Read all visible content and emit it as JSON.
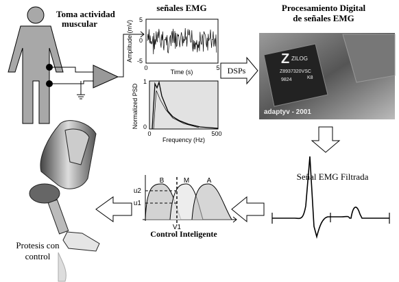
{
  "muscle": {
    "label": [
      "Toma actividad",
      "muscular"
    ]
  },
  "emg_plot": {
    "title": "señales EMG",
    "y_label": "Amplitude (mV)",
    "x_label": "Time (s)",
    "y_ticks": [
      5,
      0,
      -5
    ],
    "x_ticks": [
      0,
      5
    ]
  },
  "psd_plot": {
    "y_label": "Normalized PSD",
    "x_label": "Frequency (Hz)",
    "y_ticks": [
      1,
      0
    ],
    "x_ticks": [
      0,
      500
    ]
  },
  "processing": {
    "title": [
      "Procesamiento Digital",
      "de señales EMG"
    ],
    "chip": {
      "brand": "ZILOG",
      "part": "Z8937320VSC",
      "code": "9824",
      "suffix": "K8",
      "watermark": "adaptyv - 2001"
    }
  },
  "dsp_arrow": "DSPs",
  "filtered": "Señal EMG Filtrada",
  "control": {
    "title": "Control Inteligente",
    "sets": [
      "B",
      "M",
      "A"
    ],
    "levels": [
      "u2",
      "u1"
    ],
    "input": "V1"
  },
  "prosthesis": {
    "label": [
      "Protesis con",
      "control"
    ]
  }
}
